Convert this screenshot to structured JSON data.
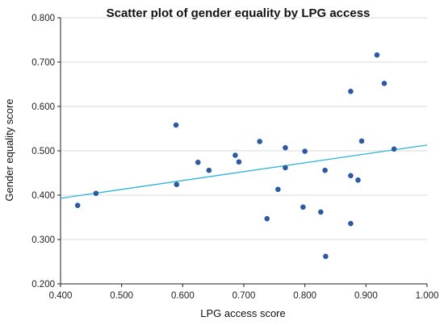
{
  "chart_data": {
    "type": "scatter",
    "title": "Scatter plot of gender equality by LPG access",
    "xlabel": "LPG access score",
    "ylabel": "Gender equality score",
    "xlim": [
      0.4,
      1.0
    ],
    "ylim": [
      0.2,
      0.8
    ],
    "x_ticks": [
      "0.400",
      "0.500",
      "0.600",
      "0.700",
      "0.800",
      "0.900",
      "1.000"
    ],
    "y_ticks": [
      "0.200",
      "0.300",
      "0.400",
      "0.500",
      "0.600",
      "0.700",
      "0.800"
    ],
    "grid": "horizontal",
    "point_color": "#2b5aa3",
    "trendline_color": "#29b4d6",
    "trendline": {
      "x": [
        0.4,
        1.0
      ],
      "y": [
        0.393,
        0.513
      ]
    },
    "points": [
      {
        "x": 0.428,
        "y": 0.377
      },
      {
        "x": 0.458,
        "y": 0.404
      },
      {
        "x": 0.589,
        "y": 0.558
      },
      {
        "x": 0.59,
        "y": 0.424
      },
      {
        "x": 0.625,
        "y": 0.474
      },
      {
        "x": 0.643,
        "y": 0.456
      },
      {
        "x": 0.686,
        "y": 0.49
      },
      {
        "x": 0.692,
        "y": 0.475
      },
      {
        "x": 0.726,
        "y": 0.521
      },
      {
        "x": 0.738,
        "y": 0.347
      },
      {
        "x": 0.756,
        "y": 0.413
      },
      {
        "x": 0.768,
        "y": 0.507
      },
      {
        "x": 0.768,
        "y": 0.462
      },
      {
        "x": 0.797,
        "y": 0.373
      },
      {
        "x": 0.8,
        "y": 0.499
      },
      {
        "x": 0.826,
        "y": 0.362
      },
      {
        "x": 0.833,
        "y": 0.456
      },
      {
        "x": 0.834,
        "y": 0.262
      },
      {
        "x": 0.875,
        "y": 0.634
      },
      {
        "x": 0.875,
        "y": 0.444
      },
      {
        "x": 0.875,
        "y": 0.336
      },
      {
        "x": 0.887,
        "y": 0.434
      },
      {
        "x": 0.893,
        "y": 0.522
      },
      {
        "x": 0.918,
        "y": 0.716
      },
      {
        "x": 0.93,
        "y": 0.652
      },
      {
        "x": 0.946,
        "y": 0.504
      }
    ]
  }
}
